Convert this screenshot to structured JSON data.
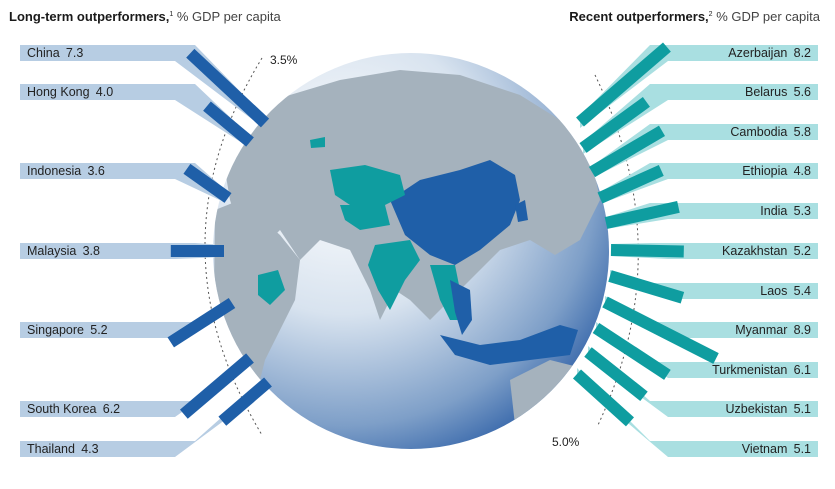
{
  "header_left": {
    "title": "Long-term outperformers,",
    "note": "1",
    "unit": " % GDP per capita"
  },
  "header_right": {
    "title": "Recent outperformers,",
    "note": "2",
    "unit": " % GDP per capita"
  },
  "chart_data": {
    "type": "bar",
    "threshold_labels": {
      "left": "3.5%",
      "right": "5.0%"
    },
    "series": [
      {
        "group": "Long-term outperformers",
        "categories": [
          "China",
          "Hong Kong",
          "Indonesia",
          "Malaysia",
          "Singapore",
          "South Korea",
          "Thailand"
        ],
        "values": [
          7.3,
          4.0,
          3.6,
          3.8,
          5.2,
          6.2,
          4.3
        ],
        "color": "#1f5fa8",
        "label_bg": "#b7cde3"
      },
      {
        "group": "Recent outperformers",
        "categories": [
          "Azerbaijan",
          "Belarus",
          "Cambodia",
          "Ethiopia",
          "India",
          "Kazakhstan",
          "Laos",
          "Myanmar",
          "Turkmenistan",
          "Uzbekistan",
          "Vietnam"
        ],
        "values": [
          8.2,
          5.6,
          5.8,
          4.8,
          5.3,
          5.2,
          5.4,
          8.9,
          6.1,
          5.1,
          5.1
        ],
        "color": "#0f9da0",
        "label_bg": "#a9dfe1"
      }
    ]
  },
  "colors": {
    "globe_light": "#ffffff",
    "globe_dark": "#2d5fa6",
    "land": "#a5b2bd",
    "long_term": "#1f5fa8",
    "recent": "#0f9da0"
  }
}
